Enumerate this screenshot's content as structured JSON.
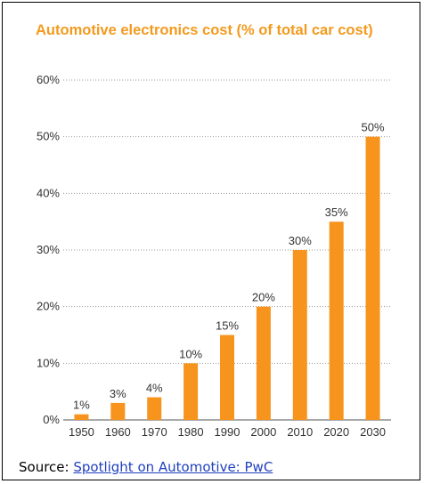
{
  "chart_data": {
    "type": "bar",
    "title": "Automotive electronics cost  (% of total car cost)",
    "categories": [
      "1950",
      "1960",
      "1970",
      "1980",
      "1990",
      "2000",
      "2010",
      "2020",
      "2030"
    ],
    "values": [
      1,
      3,
      4,
      10,
      15,
      20,
      30,
      35,
      50
    ],
    "data_labels": [
      "1%",
      "3%",
      "4%",
      "10%",
      "15%",
      "20%",
      "30%",
      "35%",
      "50%"
    ],
    "y_ticks": [
      0,
      10,
      20,
      30,
      40,
      50,
      60
    ],
    "y_tick_labels": [
      "0%",
      "10%",
      "20%",
      "30%",
      "40%",
      "50%",
      "60%"
    ],
    "ylim": [
      0,
      60
    ],
    "xlabel": "",
    "ylabel": "",
    "grid": "horizontal dotted",
    "bar_color": "#f7941d"
  },
  "source": {
    "label": "Source: ",
    "link_text": "Spotlight on Automotive: PwC "
  },
  "colors": {
    "title": "#f39a1e",
    "bar": "#f7941d",
    "link": "#1f3fbf"
  }
}
